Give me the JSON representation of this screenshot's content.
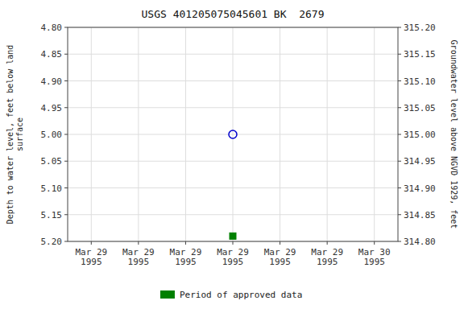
{
  "chart_data": {
    "type": "scatter",
    "title": "USGS 401205075045601 BK  2679",
    "y_label": "Depth to water level, feet below land\nsurface",
    "y2_label": "Groundwater level above NGVD 1929, feet",
    "categories": [
      "Mar 29\n1995",
      "Mar 29\n1995",
      "Mar 29\n1995",
      "Mar 29\n1995",
      "Mar 29\n1995",
      "Mar 29\n1995",
      "Mar 30\n1995"
    ],
    "series": [
      {
        "color": "#0000cc",
        "marker": "open-circle",
        "values": [
          null,
          null,
          null,
          5.0,
          null,
          null,
          null
        ]
      },
      {
        "name": "Period of approved data",
        "color": "#008000",
        "marker": "square",
        "values": [
          null,
          null,
          null,
          5.19,
          null,
          null,
          null
        ]
      }
    ],
    "ylim": [
      5.2,
      4.8
    ],
    "yticks": [
      {
        "value": 4.8,
        "label": "4.80"
      },
      {
        "value": 4.85,
        "label": "4.85"
      },
      {
        "value": 4.9,
        "label": "4.90"
      },
      {
        "value": 4.95,
        "label": "4.95"
      },
      {
        "value": 5.0,
        "label": "5.00"
      },
      {
        "value": 5.05,
        "label": "5.05"
      },
      {
        "value": 5.1,
        "label": "5.10"
      },
      {
        "value": 5.15,
        "label": "5.15"
      },
      {
        "value": 5.2,
        "label": "5.20"
      }
    ],
    "y2lim": [
      314.8,
      315.2
    ],
    "y2ticks": [
      {
        "value": 314.8,
        "label": "314.80"
      },
      {
        "value": 314.85,
        "label": "314.85"
      },
      {
        "value": 314.9,
        "label": "314.90"
      },
      {
        "value": 314.95,
        "label": "314.95"
      },
      {
        "value": 315.0,
        "label": "315.00"
      },
      {
        "value": 315.05,
        "label": "315.05"
      },
      {
        "value": 315.1,
        "label": "315.10"
      },
      {
        "value": 315.15,
        "label": "315.15"
      },
      {
        "value": 315.2,
        "label": "315.20"
      }
    ],
    "grid": true,
    "legend": "bottom"
  }
}
